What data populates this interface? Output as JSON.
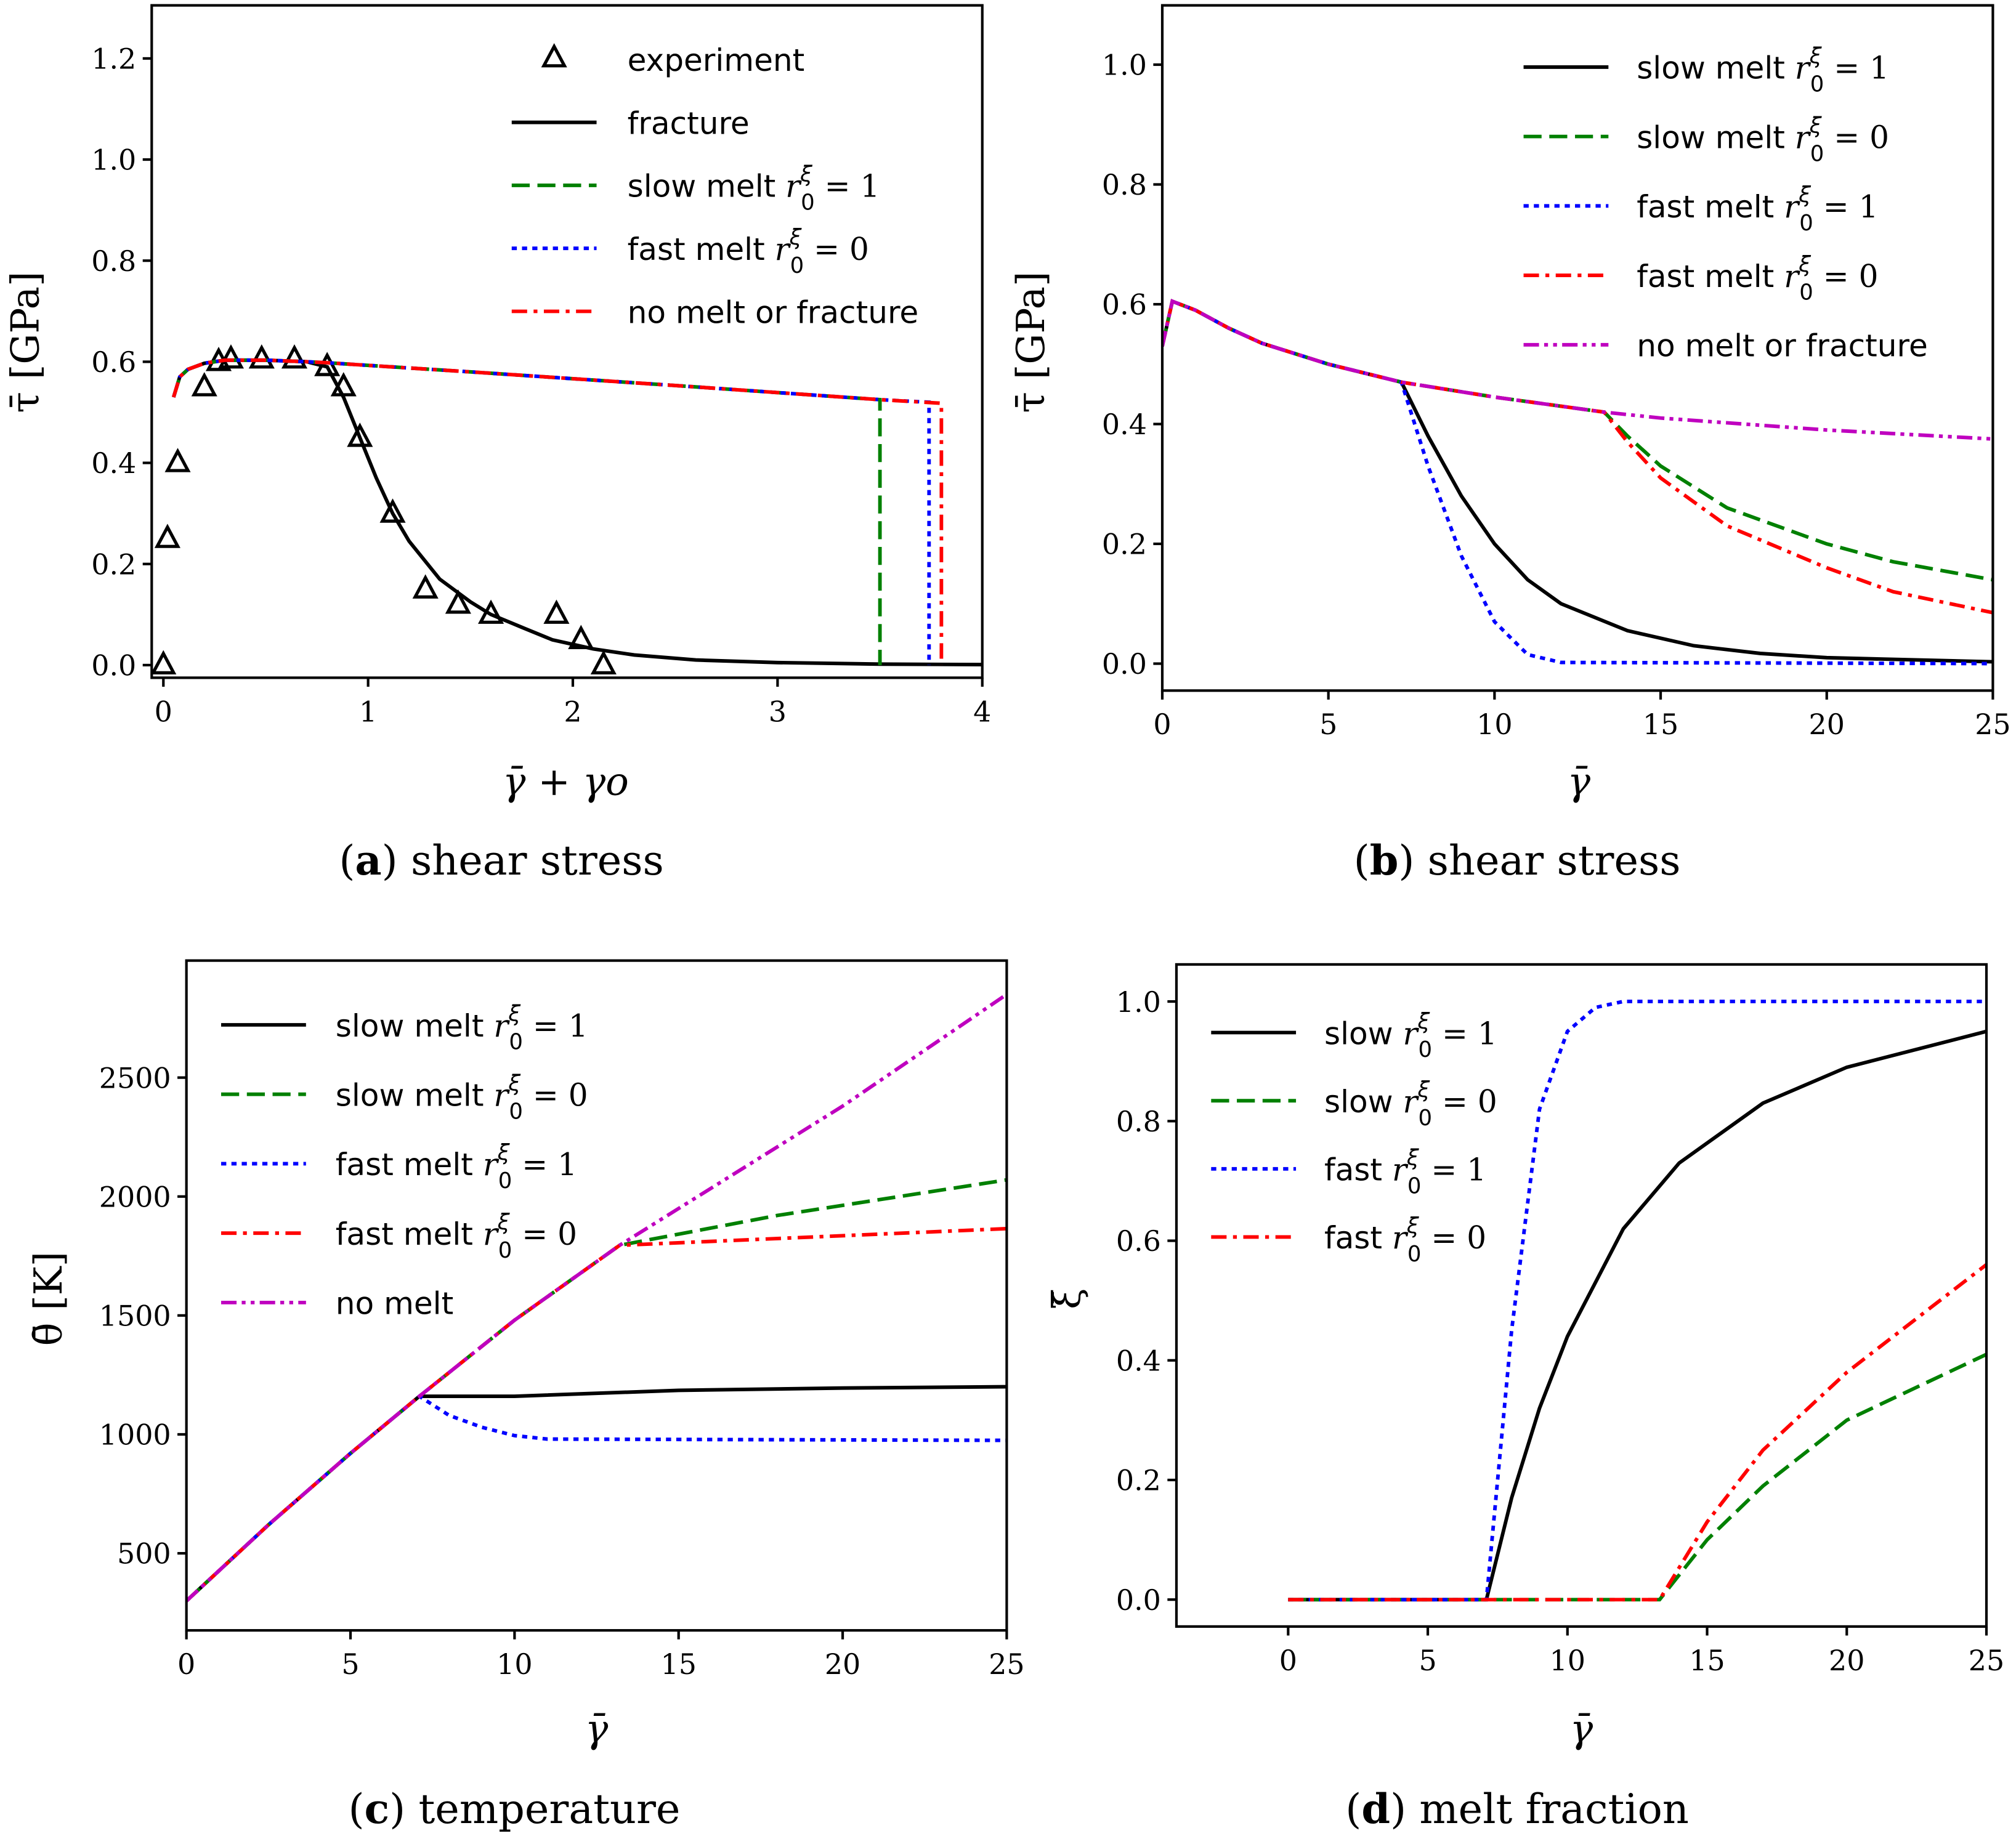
{
  "chart_data": [
    {
      "id": "a",
      "type": "line",
      "caption_letter": "a",
      "caption_text": " shear stress",
      "xlabel": "γ̄ + γo",
      "ylabel": "τ̄ [GPa]",
      "xlim": [
        -0.057,
        4
      ],
      "ylim": [
        -0.025,
        1.305
      ],
      "xticks": [
        0,
        1,
        2,
        3,
        4
      ],
      "xtick_labels": [
        "0",
        "1",
        "2",
        "3",
        "4"
      ],
      "yticks": [
        0,
        0.2,
        0.4,
        0.6,
        0.8,
        1.0,
        1.2
      ],
      "ytick_labels": [
        "0.0",
        "0.2",
        "0.4",
        "0.6",
        "0.8",
        "1.0",
        "1.2"
      ],
      "legend_position": "top-right",
      "series": [
        {
          "name": "experiment",
          "label": "experiment",
          "style": "triangle",
          "color": "#000000",
          "x": [
            0,
            0.02,
            0.07,
            0.2,
            0.27,
            0.33,
            0.48,
            0.64,
            0.8,
            0.88,
            0.96,
            1.12,
            1.28,
            1.44,
            1.6,
            1.92,
            2.04,
            2.15
          ],
          "y": [
            0,
            0.25,
            0.4,
            0.55,
            0.6,
            0.605,
            0.605,
            0.605,
            0.59,
            0.55,
            0.45,
            0.3,
            0.15,
            0.12,
            0.1,
            0.1,
            0.05,
            0.0
          ]
        },
        {
          "name": "fracture",
          "label": "fracture",
          "style": "solid",
          "color": "#000000",
          "x": [
            0.05,
            0.08,
            0.12,
            0.2,
            0.3,
            0.5,
            0.7,
            0.8,
            0.88,
            0.96,
            1.04,
            1.12,
            1.2,
            1.35,
            1.5,
            1.6,
            1.75,
            1.9,
            2.1,
            2.3,
            2.6,
            3,
            3.5,
            4
          ],
          "y": [
            0.53,
            0.57,
            0.585,
            0.597,
            0.603,
            0.603,
            0.6,
            0.59,
            0.53,
            0.45,
            0.37,
            0.3,
            0.245,
            0.17,
            0.125,
            0.1,
            0.075,
            0.05,
            0.032,
            0.02,
            0.01,
            0.005,
            0.002,
            0.001
          ]
        },
        {
          "name": "slow-melt-r1",
          "label": "slow melt ",
          "math": "r",
          "sup": "ξ",
          "sub": "0",
          "eq": " = 1",
          "style": "dashed",
          "color": "#008000",
          "x": [
            0.05,
            0.08,
            0.12,
            0.2,
            0.3,
            0.5,
            0.7,
            0.8,
            1.5,
            2.5,
            3.5,
            3.5
          ],
          "y": [
            0.53,
            0.57,
            0.585,
            0.597,
            0.603,
            0.603,
            0.6,
            0.598,
            0.58,
            0.553,
            0.525,
            0
          ]
        },
        {
          "name": "fast-melt-r0",
          "label": "fast melt ",
          "math": "r",
          "sup": "ξ",
          "sub": "0",
          "eq": " = 0",
          "style": "dotted",
          "color": "#0000ff",
          "x": [
            0.05,
            0.08,
            0.12,
            0.2,
            0.3,
            0.5,
            0.7,
            0.8,
            1.5,
            2.5,
            3.5,
            3.74,
            3.74
          ],
          "y": [
            0.53,
            0.57,
            0.585,
            0.597,
            0.603,
            0.603,
            0.6,
            0.598,
            0.58,
            0.553,
            0.525,
            0.52,
            0
          ]
        },
        {
          "name": "no-melt-or-fracture",
          "label": "no melt or fracture",
          "style": "dashdot",
          "color": "#ff0000",
          "x": [
            0.05,
            0.08,
            0.12,
            0.2,
            0.3,
            0.5,
            0.7,
            0.8,
            1.5,
            2.5,
            3.5,
            3.8,
            3.8
          ],
          "y": [
            0.53,
            0.57,
            0.585,
            0.597,
            0.603,
            0.603,
            0.6,
            0.598,
            0.58,
            0.553,
            0.525,
            0.518,
            0
          ]
        }
      ]
    },
    {
      "id": "b",
      "type": "line",
      "caption_letter": "b",
      "caption_text": " shear stress",
      "xlabel": "γ̄",
      "ylabel": "τ̄ [GPa]",
      "xlim": [
        0,
        25
      ],
      "ylim": [
        -0.045,
        1.099
      ],
      "xticks": [
        0,
        5,
        10,
        15,
        20,
        25
      ],
      "xtick_labels": [
        "0",
        "5",
        "10",
        "15",
        "20",
        "25"
      ],
      "yticks": [
        0,
        0.2,
        0.4,
        0.6,
        0.8,
        1.0
      ],
      "ytick_labels": [
        "0.0",
        "0.2",
        "0.4",
        "0.6",
        "0.8",
        "1.0"
      ],
      "legend_position": "top-right",
      "series": [
        {
          "name": "slow-melt-r1",
          "label": "slow melt ",
          "math": "r",
          "sup": "ξ",
          "sub": "0",
          "eq": " = 1",
          "style": "solid",
          "color": "#000000",
          "x": [
            0,
            0.3,
            1,
            2,
            3,
            5,
            7.2,
            8,
            9,
            10,
            11,
            12,
            14,
            16,
            18,
            20,
            25
          ],
          "y": [
            0.53,
            0.605,
            0.59,
            0.56,
            0.535,
            0.5,
            0.47,
            0.38,
            0.28,
            0.2,
            0.14,
            0.1,
            0.055,
            0.03,
            0.017,
            0.01,
            0.003
          ]
        },
        {
          "name": "slow-melt-r0",
          "label": "slow melt ",
          "math": "r",
          "sup": "ξ",
          "sub": "0",
          "eq": " = 0",
          "style": "dashed",
          "color": "#008000",
          "x": [
            0,
            0.3,
            1,
            2,
            3,
            5,
            7.2,
            10,
            13.3,
            14,
            15,
            17,
            20,
            22,
            25
          ],
          "y": [
            0.53,
            0.605,
            0.59,
            0.56,
            0.535,
            0.5,
            0.47,
            0.445,
            0.42,
            0.38,
            0.33,
            0.26,
            0.2,
            0.17,
            0.14
          ]
        },
        {
          "name": "fast-melt-r1",
          "label": "fast melt ",
          "math": "r",
          "sup": "ξ",
          "sub": "0",
          "eq": " = 1",
          "style": "dotted",
          "color": "#0000ff",
          "x": [
            0,
            0.3,
            1,
            2,
            3,
            5,
            7.2,
            8,
            9,
            10,
            11,
            12,
            25
          ],
          "y": [
            0.53,
            0.605,
            0.59,
            0.56,
            0.535,
            0.5,
            0.47,
            0.33,
            0.18,
            0.07,
            0.015,
            0.002,
            0
          ]
        },
        {
          "name": "fast-melt-r0",
          "label": "fast melt ",
          "math": "r",
          "sup": "ξ",
          "sub": "0",
          "eq": " = 0",
          "style": "dashdot",
          "color": "#ff0000",
          "x": [
            0,
            0.3,
            1,
            2,
            3,
            5,
            7.2,
            10,
            13.3,
            14,
            15,
            17,
            20,
            22,
            25
          ],
          "y": [
            0.53,
            0.605,
            0.59,
            0.56,
            0.535,
            0.5,
            0.47,
            0.445,
            0.42,
            0.37,
            0.31,
            0.23,
            0.16,
            0.12,
            0.085
          ]
        },
        {
          "name": "no-melt-or-fracture",
          "label": "no melt or fracture",
          "style": "dashdotdot",
          "color": "#bf00bf",
          "x": [
            0,
            0.3,
            1,
            2,
            3,
            5,
            7.2,
            10,
            13.3,
            15,
            20,
            25
          ],
          "y": [
            0.53,
            0.605,
            0.59,
            0.56,
            0.535,
            0.5,
            0.47,
            0.445,
            0.42,
            0.41,
            0.39,
            0.375
          ]
        }
      ]
    },
    {
      "id": "c",
      "type": "line",
      "caption_letter": "c",
      "caption_text": " temperature",
      "xlabel": "γ̄",
      "ylabel": "θ̄ [K]",
      "xlim": [
        0,
        25
      ],
      "ylim": [
        176,
        2992
      ],
      "xticks": [
        0,
        5,
        10,
        15,
        20,
        25
      ],
      "xtick_labels": [
        "0",
        "5",
        "10",
        "15",
        "20",
        "25"
      ],
      "yticks": [
        500,
        1000,
        1500,
        2000,
        2500
      ],
      "ytick_labels": [
        "500",
        "1000",
        "1500",
        "2000",
        "2500"
      ],
      "legend_position": "top-left",
      "series": [
        {
          "name": "slow-melt-r1",
          "label": "slow melt ",
          "math": "r",
          "sup": "ξ",
          "sub": "0",
          "eq": " = 1",
          "style": "solid",
          "color": "#000000",
          "x": [
            0,
            2.5,
            5,
            7.1,
            10,
            15,
            20,
            25
          ],
          "y": [
            300,
            620,
            920,
            1160,
            1160,
            1185,
            1195,
            1200
          ]
        },
        {
          "name": "slow-melt-r0",
          "label": "slow melt ",
          "math": "r",
          "sup": "ξ",
          "sub": "0",
          "eq": " = 0",
          "style": "dashed",
          "color": "#008000",
          "x": [
            0,
            2.5,
            5,
            7.1,
            10,
            13.2,
            18,
            25
          ],
          "y": [
            300,
            620,
            920,
            1160,
            1480,
            1795,
            1920,
            2070
          ]
        },
        {
          "name": "fast-melt-r1",
          "label": "fast melt ",
          "math": "r",
          "sup": "ξ",
          "sub": "0",
          "eq": " = 1",
          "style": "dotted",
          "color": "#0000ff",
          "x": [
            0,
            2.5,
            5,
            7.1,
            8,
            9,
            10,
            11,
            25
          ],
          "y": [
            300,
            620,
            920,
            1160,
            1080,
            1030,
            995,
            980,
            975
          ]
        },
        {
          "name": "fast-melt-r0",
          "label": "fast melt ",
          "math": "r",
          "sup": "ξ",
          "sub": "0",
          "eq": " = 0",
          "style": "dashdot",
          "color": "#ff0000",
          "x": [
            0,
            2.5,
            5,
            7.1,
            10,
            13.2,
            25
          ],
          "y": [
            300,
            620,
            920,
            1160,
            1480,
            1795,
            1865
          ]
        },
        {
          "name": "no-melt",
          "label": "no melt",
          "style": "dashdotdot",
          "color": "#bf00bf",
          "x": [
            0,
            2.5,
            5,
            7.1,
            10,
            13.2,
            20,
            25
          ],
          "y": [
            300,
            620,
            920,
            1160,
            1480,
            1795,
            2380,
            2850
          ]
        }
      ]
    },
    {
      "id": "d",
      "type": "line",
      "caption_letter": "d",
      "caption_text": " melt fraction",
      "xlabel": "γ̄",
      "ylabel": "ξ̄",
      "xlim": [
        -4,
        25
      ],
      "ylim": [
        -0.045,
        1.062
      ],
      "xticks": [
        0,
        5,
        10,
        15,
        20,
        25
      ],
      "xtick_labels": [
        "0",
        "5",
        "10",
        "15",
        "20",
        "25"
      ],
      "yticks": [
        0,
        0.2,
        0.4,
        0.6,
        0.8,
        1.0
      ],
      "ytick_labels": [
        "0.0",
        "0.2",
        "0.4",
        "0.6",
        "0.8",
        "1.0"
      ],
      "legend_position": "top-left",
      "series": [
        {
          "name": "slow-r1",
          "label": "slow ",
          "math": "r",
          "sup": "ξ",
          "sub": "0",
          "eq": " = 1",
          "style": "solid",
          "color": "#000000",
          "x": [
            0,
            7.1,
            8,
            9,
            10,
            12,
            14,
            17,
            20,
            25
          ],
          "y": [
            0,
            0,
            0.17,
            0.32,
            0.44,
            0.62,
            0.73,
            0.83,
            0.89,
            0.95
          ]
        },
        {
          "name": "slow-r0",
          "label": "slow ",
          "math": "r",
          "sup": "ξ",
          "sub": "0",
          "eq": " = 0",
          "style": "dashed",
          "color": "#008000",
          "x": [
            0,
            13.3,
            15,
            17,
            20,
            25
          ],
          "y": [
            0,
            0,
            0.1,
            0.19,
            0.3,
            0.41
          ]
        },
        {
          "name": "fast-r1",
          "label": "fast ",
          "math": "r",
          "sup": "ξ",
          "sub": "0",
          "eq": " = 1",
          "style": "dotted",
          "color": "#0000ff",
          "x": [
            0,
            7.1,
            8,
            9,
            10,
            11,
            12,
            25
          ],
          "y": [
            0,
            0,
            0.45,
            0.82,
            0.95,
            0.99,
            1,
            1
          ]
        },
        {
          "name": "fast-r0",
          "label": "fast ",
          "math": "r",
          "sup": "ξ",
          "sub": "0",
          "eq": " = 0",
          "style": "dashdot",
          "color": "#ff0000",
          "x": [
            0,
            13.3,
            15,
            17,
            20,
            25
          ],
          "y": [
            0,
            0,
            0.13,
            0.25,
            0.38,
            0.56
          ]
        }
      ]
    }
  ]
}
